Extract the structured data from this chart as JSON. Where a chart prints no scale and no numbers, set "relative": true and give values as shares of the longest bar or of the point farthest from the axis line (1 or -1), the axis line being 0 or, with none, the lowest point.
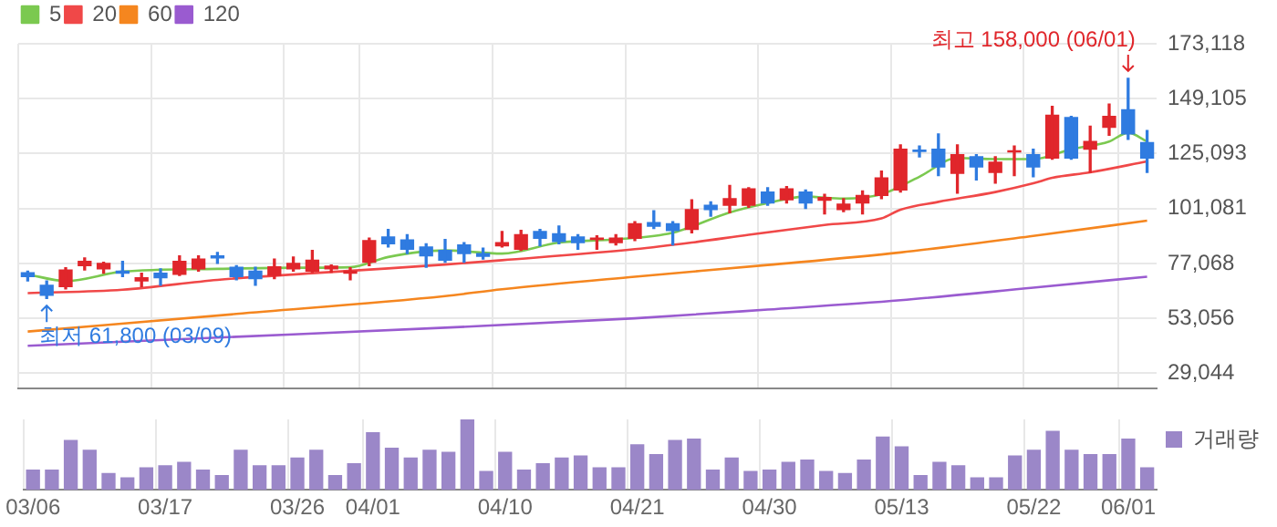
{
  "chart_data": [
    {
      "type": "candlestick",
      "categories": [
        "03/06",
        null,
        null,
        null,
        null,
        null,
        null,
        "03/17",
        null,
        null,
        null,
        null,
        null,
        null,
        "03/26",
        null,
        null,
        null,
        "04/01",
        null,
        null,
        null,
        null,
        null,
        null,
        "04/10",
        null,
        null,
        null,
        null,
        null,
        null,
        "04/21",
        null,
        null,
        null,
        null,
        null,
        null,
        "04/30",
        null,
        null,
        null,
        null,
        null,
        null,
        "05/13",
        null,
        null,
        null,
        null,
        null,
        null,
        "05/22",
        null,
        null,
        null,
        null,
        "06/01",
        null
      ],
      "ohlc": [
        [
          73000,
          73700,
          69400,
          71300
        ],
        [
          67500,
          69400,
          61800,
          63200
        ],
        [
          67000,
          75200,
          66000,
          74200
        ],
        [
          76100,
          79500,
          74200,
          78000
        ],
        [
          74700,
          77600,
          72800,
          77100
        ],
        [
          73700,
          78000,
          71300,
          72800
        ],
        [
          69400,
          72800,
          67000,
          70800
        ],
        [
          72800,
          74700,
          67500,
          70800
        ],
        [
          72300,
          80400,
          71800,
          78000
        ],
        [
          74700,
          80400,
          73700,
          79000
        ],
        [
          80400,
          81900,
          77100,
          79500
        ],
        [
          75400,
          76100,
          69900,
          71300
        ],
        [
          73700,
          75400,
          67500,
          70400
        ],
        [
          71800,
          79000,
          70400,
          75600
        ],
        [
          74700,
          79900,
          73700,
          77100
        ],
        [
          73700,
          82800,
          73200,
          78500
        ],
        [
          74700,
          76400,
          73200,
          75900
        ],
        [
          72800,
          75200,
          69900,
          73700
        ],
        [
          77600,
          88100,
          76100,
          87100
        ],
        [
          88600,
          91900,
          84300,
          85700
        ],
        [
          87400,
          89600,
          81400,
          83300
        ],
        [
          84300,
          85700,
          75400,
          80400
        ],
        [
          82800,
          87600,
          77600,
          78500
        ],
        [
          85200,
          86200,
          77600,
          81400
        ],
        [
          81400,
          83800,
          79000,
          80200
        ],
        [
          84800,
          91000,
          84300,
          86200
        ],
        [
          83300,
          91500,
          82800,
          89600
        ],
        [
          91000,
          91900,
          84800,
          88100
        ],
        [
          90000,
          93400,
          85700,
          86700
        ],
        [
          88600,
          89600,
          83300,
          86200
        ],
        [
          87600,
          89100,
          83300,
          88100
        ],
        [
          86200,
          89600,
          85200,
          88100
        ],
        [
          88100,
          95300,
          87100,
          94400
        ],
        [
          94900,
          100100,
          92400,
          93400
        ],
        [
          94400,
          95300,
          85200,
          91500
        ],
        [
          92000,
          104900,
          90500,
          100600
        ],
        [
          102500,
          104000,
          97700,
          100600
        ],
        [
          102500,
          111200,
          99200,
          105400
        ],
        [
          102500,
          110200,
          101600,
          109700
        ],
        [
          108300,
          110200,
          102500,
          103500
        ],
        [
          104900,
          110700,
          103500,
          109700
        ],
        [
          108300,
          109200,
          101100,
          103500
        ],
        [
          104700,
          107300,
          98700,
          105900
        ],
        [
          100600,
          105400,
          99700,
          103000
        ],
        [
          103500,
          108800,
          98700,
          106800
        ],
        [
          106800,
          117400,
          105400,
          114500
        ],
        [
          109200,
          128900,
          108300,
          127000
        ],
        [
          126600,
          128400,
          123700,
          126000
        ],
        [
          127000,
          133700,
          115500,
          119300
        ],
        [
          116500,
          128900,
          107800,
          124600
        ],
        [
          123700,
          124600,
          113600,
          119300
        ],
        [
          116900,
          123700,
          112200,
          121300
        ],
        [
          125800,
          128400,
          115500,
          126300
        ],
        [
          124600,
          127000,
          115000,
          119300
        ],
        [
          123200,
          145700,
          122700,
          141900
        ],
        [
          140900,
          141400,
          122700,
          123200
        ],
        [
          127000,
          137100,
          116900,
          130400
        ],
        [
          136600,
          146700,
          133100,
          141400
        ],
        [
          144300,
          158000,
          131300,
          133700
        ],
        [
          129900,
          135200,
          116900,
          123200
        ]
      ],
      "colors": [
        "#2f7be0",
        "#2f7be0",
        "#e0262b",
        "#e0262b",
        "#e0262b",
        "#2f7be0",
        "#e0262b",
        "#2f7be0",
        "#e0262b",
        "#e0262b",
        "#2f7be0",
        "#2f7be0",
        "#2f7be0",
        "#e0262b",
        "#e0262b",
        "#e0262b",
        "#e0262b",
        "#e0262b",
        "#e0262b",
        "#2f7be0",
        "#2f7be0",
        "#2f7be0",
        "#2f7be0",
        "#2f7be0",
        "#2f7be0",
        "#e0262b",
        "#e0262b",
        "#2f7be0",
        "#2f7be0",
        "#2f7be0",
        "#e0262b",
        "#e0262b",
        "#e0262b",
        "#2f7be0",
        "#2f7be0",
        "#e0262b",
        "#2f7be0",
        "#e0262b",
        "#e0262b",
        "#2f7be0",
        "#e0262b",
        "#2f7be0",
        "#e0262b",
        "#e0262b",
        "#e0262b",
        "#e0262b",
        "#e0262b",
        "#2f7be0",
        "#2f7be0",
        "#e0262b",
        "#2f7be0",
        "#e0262b",
        "#e0262b",
        "#2f7be0",
        "#e0262b",
        "#2f7be0",
        "#e0262b",
        "#e0262b",
        "#2f7be0",
        "#2f7be0"
      ],
      "series": [
        {
          "name": "5",
          "type": "line",
          "color": "#7bc950",
          "values": [
            72300,
            null,
            69400,
            null,
            null,
            73500,
            null,
            null,
            null,
            null,
            74700,
            null,
            null,
            null,
            75200,
            null,
            null,
            75400,
            null,
            79900,
            null,
            null,
            82800,
            null,
            null,
            81400,
            null,
            null,
            86200,
            null,
            null,
            87600,
            null,
            null,
            90500,
            null,
            null,
            99400,
            null,
            103500,
            null,
            106300,
            null,
            105400,
            null,
            107300,
            null,
            115000,
            null,
            123200,
            null,
            122700,
            null,
            122700,
            null,
            127000,
            null,
            130400,
            134200,
            130400
          ]
        },
        {
          "name": "20",
          "type": "line",
          "color": "#f04848",
          "values": [
            64100,
            null,
            null,
            null,
            null,
            65600,
            null,
            null,
            null,
            null,
            69900,
            null,
            null,
            null,
            null,
            72800,
            null,
            null,
            null,
            74900,
            null,
            null,
            76600,
            null,
            null,
            78500,
            null,
            null,
            null,
            null,
            null,
            null,
            83300,
            null,
            null,
            86200,
            null,
            null,
            89600,
            null,
            null,
            null,
            93900,
            null,
            null,
            96800,
            100600,
            null,
            104000,
            null,
            null,
            108300,
            null,
            112100,
            114500,
            null,
            116900,
            null,
            null,
            121700
          ]
        },
        {
          "name": "60",
          "type": "line",
          "color": "#f5861f",
          "values": [
            47300,
            null,
            null,
            null,
            null,
            null,
            null,
            null,
            null,
            null,
            null,
            55000,
            null,
            null,
            null,
            null,
            null,
            null,
            null,
            null,
            null,
            null,
            62800,
            null,
            null,
            65800,
            null,
            null,
            null,
            null,
            null,
            null,
            71300,
            null,
            null,
            null,
            null,
            null,
            null,
            76400,
            null,
            null,
            null,
            null,
            null,
            null,
            81900,
            null,
            null,
            null,
            null,
            null,
            null,
            89100,
            null,
            null,
            null,
            null,
            null,
            95800
          ]
        },
        {
          "name": "120",
          "type": "line",
          "color": "#9a5bd0",
          "values": [
            41100,
            null,
            null,
            null,
            null,
            null,
            null,
            null,
            null,
            null,
            null,
            45000,
            null,
            null,
            null,
            null,
            null,
            null,
            null,
            null,
            null,
            null,
            49000,
            null,
            null,
            null,
            null,
            null,
            null,
            null,
            null,
            null,
            53100,
            null,
            null,
            null,
            null,
            null,
            null,
            56900,
            null,
            null,
            null,
            null,
            null,
            null,
            61000,
            null,
            null,
            null,
            null,
            null,
            null,
            66500,
            null,
            null,
            null,
            null,
            null,
            71300
          ]
        }
      ],
      "ylim": [
        22600,
        173118
      ],
      "yticks": [
        {
          "value": 29044,
          "label": "29,044"
        },
        {
          "value": 53056,
          "label": "53,056"
        },
        {
          "value": 77068,
          "label": "77,068"
        },
        {
          "value": 101081,
          "label": "101,081"
        },
        {
          "value": 125093,
          "label": "125,093"
        },
        {
          "value": 149105,
          "label": "149,105"
        },
        {
          "value": 173118,
          "label": "173,118"
        }
      ],
      "annotations": [
        {
          "text": "최고 158,000 (06/01)",
          "x": "06/01",
          "y": 158000
        },
        {
          "text": "최저 61,800 (03/09)",
          "y": 61800
        }
      ],
      "grid": true,
      "legend": "top left",
      "tick_labels": "y"
    },
    {
      "type": "bar",
      "relative": true,
      "categories": [
        "03/06",
        null,
        null,
        null,
        null,
        null,
        null,
        "03/17",
        null,
        null,
        null,
        null,
        null,
        null,
        "03/26",
        null,
        null,
        null,
        "04/01",
        null,
        null,
        null,
        null,
        null,
        null,
        "04/10",
        null,
        null,
        null,
        null,
        null,
        null,
        "04/21",
        null,
        null,
        null,
        null,
        null,
        null,
        "04/30",
        null,
        null,
        null,
        null,
        null,
        null,
        "05/13",
        null,
        null,
        null,
        null,
        null,
        null,
        "05/22",
        null,
        null,
        null,
        null,
        "06/01",
        null
      ],
      "series": [
        {
          "name": "거래량",
          "color": "#9b87c8",
          "values": [
            0.28,
            0.28,
            0.7,
            0.56,
            0.23,
            0.17,
            0.31,
            0.34,
            0.39,
            0.28,
            0.2,
            0.56,
            0.34,
            0.34,
            0.45,
            0.56,
            0.2,
            0.37,
            0.81,
            0.59,
            0.45,
            0.56,
            0.53,
            1,
            0.26,
            0.53,
            0.28,
            0.37,
            0.45,
            0.48,
            0.31,
            0.31,
            0.64,
            0.5,
            0.7,
            0.72,
            0.28,
            0.45,
            0.26,
            0.28,
            0.39,
            0.42,
            0.26,
            0.23,
            0.42,
            0.75,
            0.61,
            0.2,
            0.39,
            0.34,
            0.17,
            0.17,
            0.48,
            0.56,
            0.83,
            0.56,
            0.5,
            0.5,
            0.72,
            0.31
          ]
        }
      ],
      "grid": "x",
      "legend": "right",
      "tick_labels": "x"
    }
  ]
}
